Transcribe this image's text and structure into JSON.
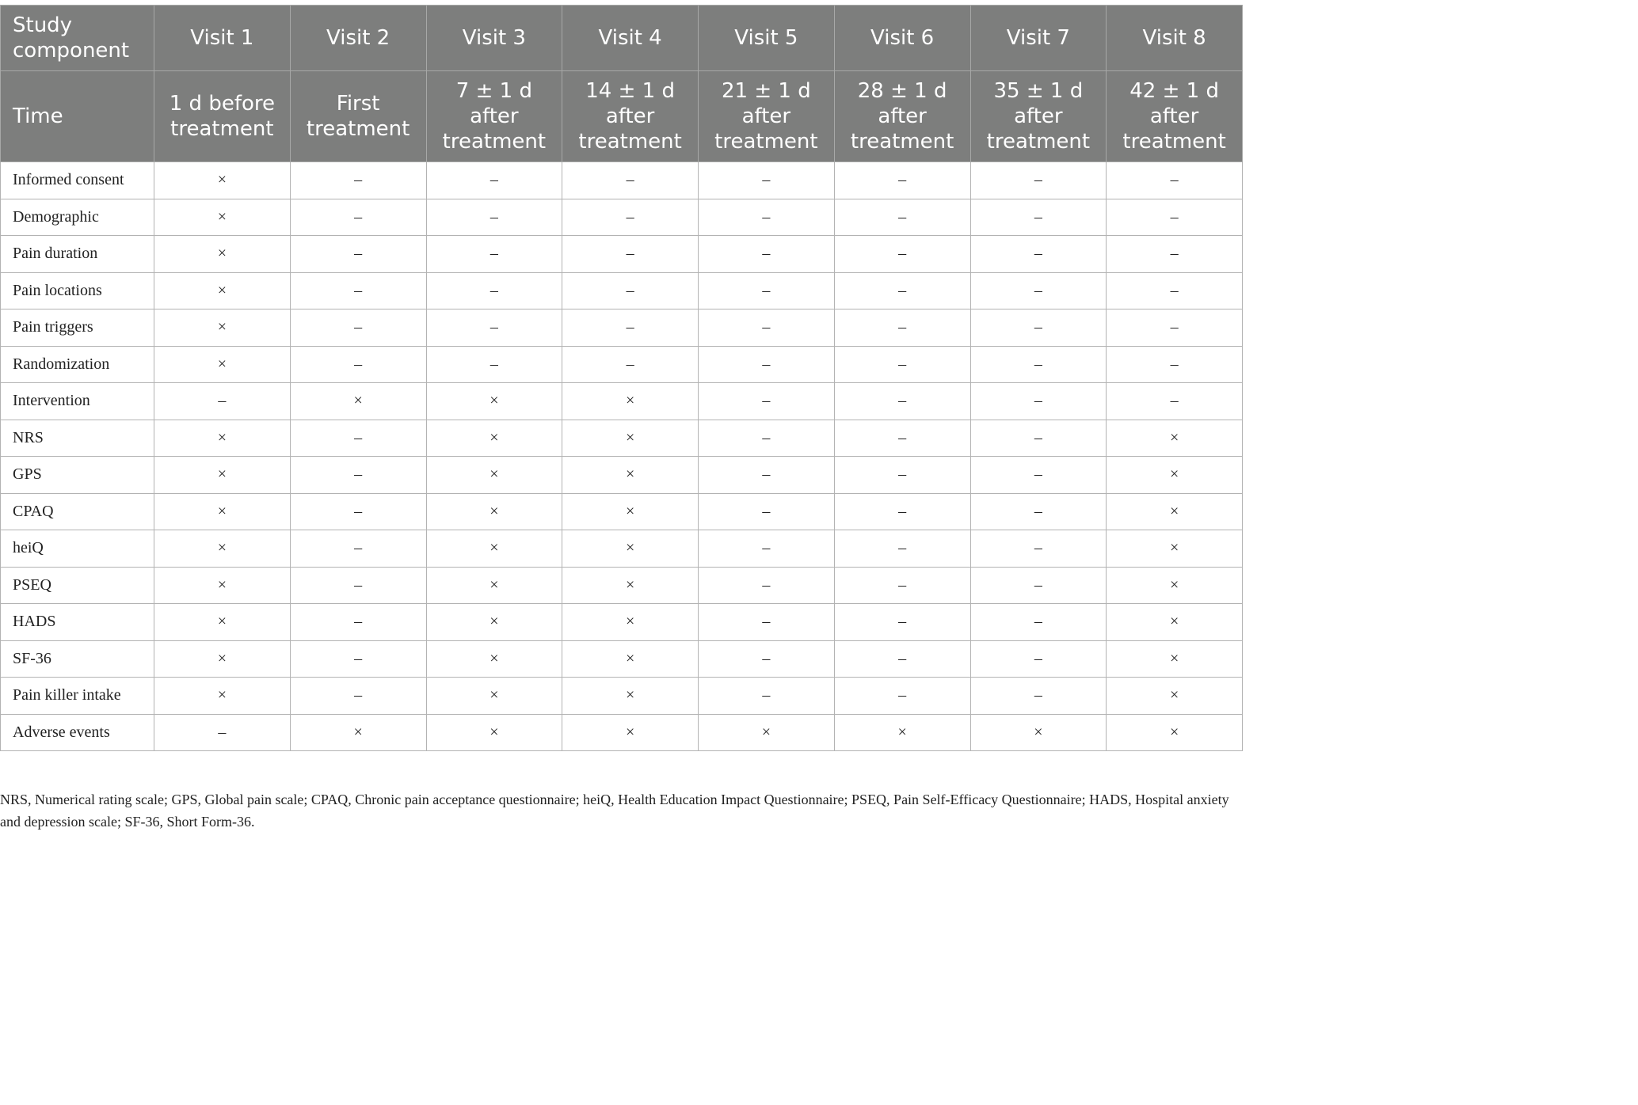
{
  "table": {
    "header_row1": [
      "Study component",
      "Visit 1",
      "Visit 2",
      "Visit 3",
      "Visit 4",
      "Visit 5",
      "Visit 6",
      "Visit 7",
      "Visit 8"
    ],
    "header_row2": [
      "Time",
      "1 d before treatment",
      "First treatment",
      "7 ± 1 d after treatment",
      "14 ± 1 d after treatment",
      "21 ± 1 d after treatment",
      "28 ± 1 d after treatment",
      "35 ± 1 d after treatment",
      "42 ± 1 d after treatment"
    ],
    "rows": [
      {
        "label": "Informed consent",
        "cells": [
          "×",
          "–",
          "–",
          "–",
          "–",
          "–",
          "–",
          "–"
        ]
      },
      {
        "label": "Demographic",
        "cells": [
          "×",
          "–",
          "–",
          "–",
          "–",
          "–",
          "–",
          "–"
        ]
      },
      {
        "label": "Pain duration",
        "cells": [
          "×",
          "–",
          "–",
          "–",
          "–",
          "–",
          "–",
          "–"
        ]
      },
      {
        "label": "Pain locations",
        "cells": [
          "×",
          "–",
          "–",
          "–",
          "–",
          "–",
          "–",
          "–"
        ]
      },
      {
        "label": "Pain triggers",
        "cells": [
          "×",
          "–",
          "–",
          "–",
          "–",
          "–",
          "–",
          "–"
        ]
      },
      {
        "label": "Randomization",
        "cells": [
          "×",
          "–",
          "–",
          "–",
          "–",
          "–",
          "–",
          "–"
        ]
      },
      {
        "label": "Intervention",
        "cells": [
          "–",
          "×",
          "×",
          "×",
          "–",
          "–",
          "–",
          "–"
        ]
      },
      {
        "label": "NRS",
        "cells": [
          "×",
          "–",
          "×",
          "×",
          "–",
          "–",
          "–",
          "×"
        ]
      },
      {
        "label": "GPS",
        "cells": [
          "×",
          "–",
          "×",
          "×",
          "–",
          "–",
          "–",
          "×"
        ]
      },
      {
        "label": "CPAQ",
        "cells": [
          "×",
          "–",
          "×",
          "×",
          "–",
          "–",
          "–",
          "×"
        ]
      },
      {
        "label": "heiQ",
        "cells": [
          "×",
          "–",
          "×",
          "×",
          "–",
          "–",
          "–",
          "×"
        ]
      },
      {
        "label": "PSEQ",
        "cells": [
          "×",
          "–",
          "×",
          "×",
          "–",
          "–",
          "–",
          "×"
        ]
      },
      {
        "label": "HADS",
        "cells": [
          "×",
          "–",
          "×",
          "×",
          "–",
          "–",
          "–",
          "×"
        ]
      },
      {
        "label": "SF-36",
        "cells": [
          "×",
          "–",
          "×",
          "×",
          "–",
          "–",
          "–",
          "×"
        ]
      },
      {
        "label": "Pain killer intake",
        "cells": [
          "×",
          "–",
          "×",
          "×",
          "–",
          "–",
          "–",
          "×"
        ]
      },
      {
        "label": "Adverse events",
        "cells": [
          "–",
          "×",
          "×",
          "×",
          "×",
          "×",
          "×",
          "×"
        ]
      }
    ]
  },
  "footnote": "NRS, Numerical rating scale; GPS, Global pain scale; CPAQ, Chronic pain acceptance questionnaire; heiQ, Health Education Impact Questionnaire; PSEQ, Pain Self-Efficacy Questionnaire; HADS, Hospital anxiety and depression scale; SF-36, Short Form-36.",
  "colors": {
    "header_bg": "#7d7e7d",
    "header_text": "#ffffff",
    "grid_line": "#b3b3b3",
    "body_text": "#222222"
  }
}
